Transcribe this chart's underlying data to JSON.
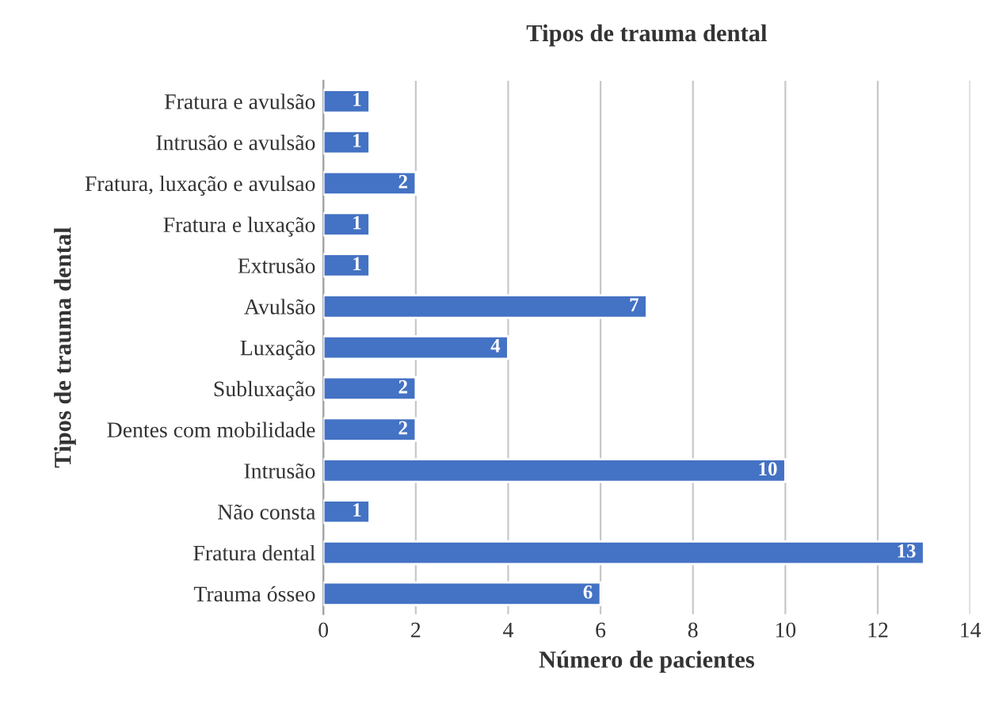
{
  "chart_data": {
    "type": "bar",
    "orientation": "horizontal",
    "title": "Tipos de trauma dental",
    "xlabel": "Número de pacientes",
    "ylabel": "Tipos de trauma dental",
    "categories": [
      "Fratura e avulsão",
      "Intrusão e avulsão",
      "Fratura, luxação e avulsao",
      "Fratura e luxação",
      "Extrusão",
      "Avulsão",
      "Luxação",
      "Subluxação",
      "Dentes com mobilidade",
      "Intrusão",
      "Não consta",
      "Fratura dental",
      "Trauma ósseo"
    ],
    "values": [
      1,
      1,
      2,
      1,
      1,
      7,
      4,
      2,
      2,
      10,
      1,
      13,
      6
    ],
    "color": "#4472c4",
    "xlim": [
      0,
      14
    ],
    "xticks": [
      0,
      2,
      4,
      6,
      8,
      10,
      12,
      14
    ],
    "grid": "x",
    "data_labels": true,
    "legend": false
  }
}
